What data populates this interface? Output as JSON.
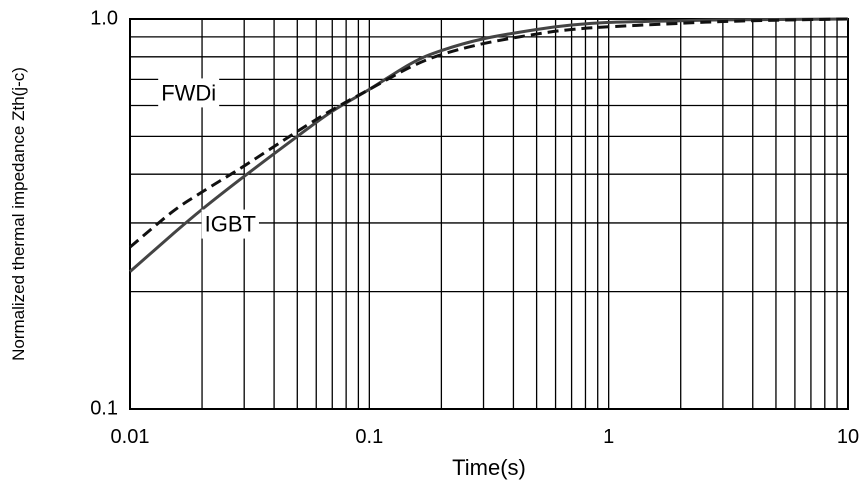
{
  "chart_data": {
    "type": "line",
    "title": "",
    "xlabel": "Time(s)",
    "ylabel": "Normalized thermal impedance Zth(j-c)",
    "x_scale": "log",
    "y_scale": "log",
    "xlim": [
      0.01,
      10
    ],
    "ylim": [
      0.1,
      1.0
    ],
    "grid": true,
    "x_ticks": [
      0.01,
      0.1,
      1,
      10
    ],
    "x_tick_labels": [
      "0.01",
      "0.1",
      "1",
      "10"
    ],
    "y_ticks": [
      0.1,
      1.0
    ],
    "y_tick_labels": [
      "0.1",
      "1.0"
    ],
    "series": [
      {
        "name": "IGBT",
        "style": "solid",
        "color": "#444444",
        "x": [
          0.01,
          0.015,
          0.02,
          0.03,
          0.05,
          0.07,
          0.1,
          0.15,
          0.2,
          0.3,
          0.5,
          0.7,
          1,
          2,
          3,
          5,
          10
        ],
        "y": [
          0.225,
          0.28,
          0.325,
          0.395,
          0.5,
          0.58,
          0.66,
          0.77,
          0.83,
          0.89,
          0.94,
          0.965,
          0.98,
          0.99,
          0.995,
          0.997,
          1.0
        ]
      },
      {
        "name": "FWDi",
        "style": "dashed",
        "color": "#111111",
        "x": [
          0.01,
          0.015,
          0.02,
          0.03,
          0.05,
          0.07,
          0.1,
          0.15,
          0.2,
          0.3,
          0.5,
          0.7,
          1,
          2,
          3,
          5,
          10
        ],
        "y": [
          0.26,
          0.32,
          0.36,
          0.42,
          0.515,
          0.585,
          0.66,
          0.755,
          0.81,
          0.865,
          0.915,
          0.94,
          0.955,
          0.975,
          0.985,
          0.993,
          1.0
        ]
      }
    ],
    "labels": {
      "igbt": "IGBT",
      "fwdi": "FWDi"
    },
    "annotation_anchors": {
      "fwdi": {
        "x": 0.0135,
        "y": 0.64
      },
      "igbt": {
        "x": 0.0205,
        "y": 0.295
      }
    }
  }
}
